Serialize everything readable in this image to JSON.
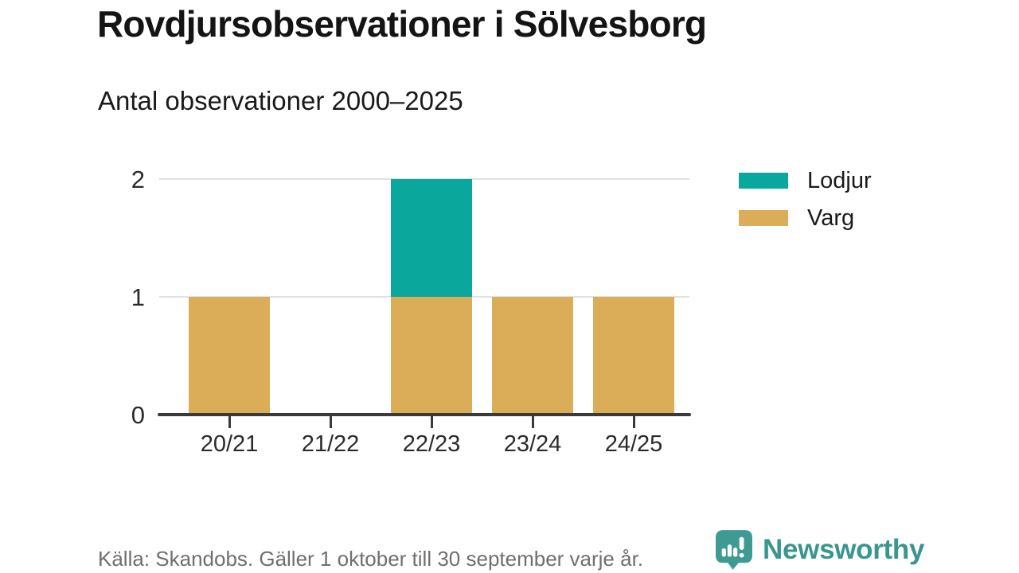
{
  "header": {
    "title": "Rovdjursobservationer i Sölvesborg",
    "subtitle": "Antal observationer 2000–2025"
  },
  "chart_data": {
    "type": "bar",
    "stacked": true,
    "title": "Rovdjursobservationer i Sölvesborg",
    "subtitle": "Antal observationer 2000–2025",
    "categories": [
      "20/21",
      "21/22",
      "22/23",
      "23/24",
      "24/25"
    ],
    "series": [
      {
        "name": "Lodjur",
        "color": "#0aa79c",
        "values": [
          0,
          0,
          1,
          0,
          0
        ]
      },
      {
        "name": "Varg",
        "color": "#dbad58",
        "values": [
          1,
          0,
          1,
          1,
          1
        ]
      }
    ],
    "stack_order_bottom_to_top": [
      "Varg",
      "Lodjur"
    ],
    "ylim": [
      0,
      2
    ],
    "y_ticks": [
      0,
      1,
      2
    ],
    "grid": "horizontal",
    "legend_position": "top-right"
  },
  "footer": {
    "source": "Källa: Skandobs. Gäller 1 oktober till 30 september varje år.",
    "brand": "Newsworthy"
  },
  "colors": {
    "axis": "#3a3a3a",
    "grid": "#e2e2e2",
    "brand_teal": "#39968f"
  }
}
